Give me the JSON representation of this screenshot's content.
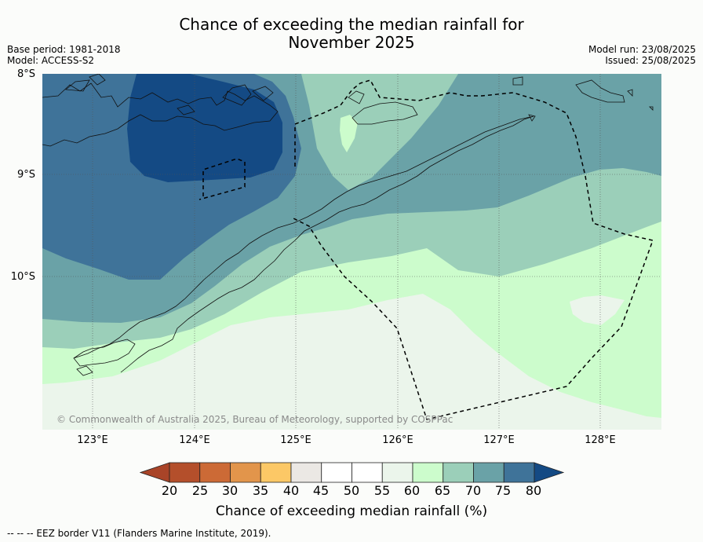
{
  "title": {
    "line1": "Chance of exceeding the median rainfall for",
    "line2": "November 2025"
  },
  "meta": {
    "base_period": "Base period: 1981-2018",
    "model": "Model: ACCESS-S2",
    "model_run": "Model run: 23/08/2025",
    "issued": "Issued: 25/08/2025"
  },
  "map": {
    "lat_labels": [
      "8°S",
      "9°S",
      "10°S"
    ],
    "lon_labels": [
      "123°E",
      "124°E",
      "125°E",
      "126°E",
      "127°E",
      "128°E"
    ],
    "copyright": "© Commonwealth of Australia 2025, Bureau of Meteorology, supported by COSPPac",
    "fill_colors": {
      "60-65": "#ebf5eb",
      "65-70": "#ccfccc",
      "70-75": "#9bcfb9",
      "75-80": "#6aa2a7",
      "80-85": "#3f7399",
      "85-90": "#144a84"
    }
  },
  "colorbar": {
    "ticks": [
      "20",
      "25",
      "30",
      "35",
      "40",
      "45",
      "50",
      "55",
      "60",
      "65",
      "70",
      "75",
      "80"
    ],
    "colors": [
      "#a94428",
      "#b44f2b",
      "#cc6a36",
      "#e2954b",
      "#fcc866",
      "#ebe8e4",
      "#ffffff",
      "#ffffff",
      "#ebf5eb",
      "#ccfccc",
      "#9bcfb9",
      "#6aa2a7",
      "#3f7399",
      "#144a84"
    ],
    "label": "Chance of exceeding median rainfall (%)"
  },
  "footer": {
    "eez_note": "--  --  -- EEZ border V11 (Flanders Marine Institute, 2019)."
  }
}
